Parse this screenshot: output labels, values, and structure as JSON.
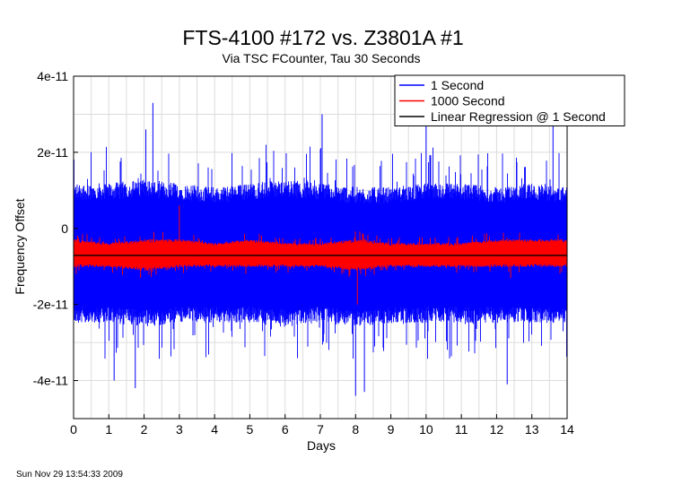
{
  "chart_data": {
    "type": "line",
    "title": "FTS-4100 #172 vs. Z3801A #1",
    "subtitle": "Via TSC FCounter, Tau 30 Seconds",
    "xlabel": "Days",
    "ylabel": "Frequency Offset",
    "xlim": [
      0,
      14
    ],
    "ylim": [
      -5e-11,
      4e-11
    ],
    "x_ticks": [
      0,
      1,
      2,
      3,
      4,
      5,
      6,
      7,
      8,
      9,
      10,
      11,
      12,
      13,
      14
    ],
    "x_tick_labels": [
      "0",
      "1",
      "2",
      "3",
      "4",
      "5",
      "6",
      "7",
      "8",
      "9",
      "10",
      "11",
      "12",
      "13",
      "14"
    ],
    "y_ticks": [
      4e-11,
      2e-11,
      0,
      -2e-11,
      -4e-11
    ],
    "y_tick_labels": [
      "4e-11",
      "2e-11",
      "0",
      "-2e-11",
      "-4e-11"
    ],
    "grid": true,
    "legend_position": "top-right",
    "series": [
      {
        "name": "1 Second",
        "color": "#0000ff",
        "envelope_x": [
          0,
          1,
          2,
          3,
          4,
          5,
          6,
          7,
          8,
          9,
          10,
          11,
          12,
          13,
          14
        ],
        "envelope_upper": [
          1.1e-11,
          1.1e-11,
          1.2e-11,
          1.1e-11,
          1e-11,
          1.1e-11,
          1.2e-11,
          1.1e-11,
          1e-11,
          1e-11,
          1.1e-11,
          1.1e-11,
          1e-11,
          1.1e-11,
          1e-11
        ],
        "envelope_lower": [
          -2.4e-11,
          -2.4e-11,
          -2.5e-11,
          -2.4e-11,
          -2.4e-11,
          -2.4e-11,
          -2.5e-11,
          -2.4e-11,
          -2.5e-11,
          -2.4e-11,
          -2.4e-11,
          -2.4e-11,
          -2.4e-11,
          -2.4e-11,
          -2.4e-11
        ],
        "peaks": [
          [
            2.25,
            3.3e-11
          ],
          [
            2.05,
            2.6e-11
          ],
          [
            7.05,
            3e-11
          ],
          [
            10.0,
            2.9e-11
          ],
          [
            1.75,
            -4.2e-11
          ],
          [
            1.15,
            -4e-11
          ],
          [
            8.0,
            -4.4e-11
          ],
          [
            8.25,
            -4.3e-11
          ],
          [
            12.3,
            -4.1e-11
          ],
          [
            13.6,
            3e-11
          ]
        ]
      },
      {
        "name": "1000 Second",
        "color": "#ff0000",
        "envelope_x": [
          0,
          1,
          2,
          3,
          4,
          5,
          6,
          7,
          8,
          9,
          10,
          11,
          12,
          13,
          14
        ],
        "envelope_upper": [
          -3e-12,
          -4e-12,
          -3e-12,
          -3e-12,
          -4e-12,
          -3e-12,
          -4e-12,
          -4e-12,
          -3e-12,
          -4e-12,
          -4e-12,
          -4e-12,
          -3e-12,
          -3e-12,
          -3e-12
        ],
        "envelope_lower": [
          -1e-11,
          -1e-11,
          -1.1e-11,
          -1e-11,
          -1e-11,
          -1e-11,
          -1e-11,
          -1e-11,
          -1.1e-11,
          -1e-11,
          -1e-11,
          -1e-11,
          -1e-11,
          -1e-11,
          -1e-11
        ],
        "peaks": [
          [
            3.0,
            6e-12
          ],
          [
            8.05,
            -2e-11
          ],
          [
            1.9,
            -1.3e-11
          ],
          [
            12.4,
            -1.3e-11
          ]
        ]
      },
      {
        "name": "Linear Regression @ 1 Second",
        "color": "#000000",
        "x": [
          0,
          14
        ],
        "values": [
          -7.1e-12,
          -7.1e-12
        ]
      }
    ]
  },
  "footer_timestamp": "Sun Nov 29 13:54:33 2009"
}
